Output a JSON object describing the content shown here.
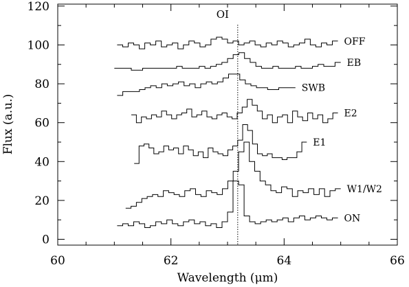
{
  "chart_data": {
    "type": "line",
    "title": "",
    "xlabel": "Wavelength (μm)",
    "ylabel": "Flux (a.u.)",
    "xlim": [
      60,
      66
    ],
    "ylim": [
      -3,
      121
    ],
    "x_ticks": [
      60,
      62,
      64,
      66
    ],
    "y_ticks": [
      0,
      20,
      40,
      60,
      80,
      100,
      120
    ],
    "step_style": "stepped histogram",
    "grid": false,
    "legend": "none; series labelled at right end of each curve",
    "annotation": {
      "text": "OI",
      "x": 63.18,
      "line_style": "dotted vertical line"
    },
    "series": [
      {
        "name": "OFF",
        "x_start": 61.05,
        "x_end": 64.95,
        "values": [
          100,
          99,
          101,
          100,
          98,
          101,
          100,
          102,
          99,
          100,
          101,
          98,
          100,
          102,
          101,
          99,
          100,
          103,
          104,
          103,
          101,
          102,
          100,
          101,
          102,
          100,
          99,
          101,
          100,
          102,
          101,
          99,
          100,
          101,
          103,
          100,
          99,
          101,
          100,
          102
        ]
      },
      {
        "name": "EB",
        "x_start": 61.0,
        "x_end": 65.0,
        "values": [
          88,
          88,
          88,
          87,
          87,
          88,
          88,
          88,
          88,
          88,
          88,
          89,
          88,
          88,
          88,
          89,
          88,
          89,
          90,
          91,
          93,
          95,
          96,
          93,
          91,
          89,
          88,
          88,
          89,
          88,
          88,
          88,
          89,
          88,
          88,
          89,
          90,
          89,
          89,
          91
        ]
      },
      {
        "name": "SWB",
        "x_start": 61.05,
        "x_end": 64.2,
        "values": [
          74,
          76,
          76,
          76,
          77,
          78,
          79,
          78,
          80,
          79,
          80,
          81,
          79,
          80,
          78,
          80,
          81,
          80,
          81,
          83,
          85,
          85,
          82,
          80,
          79,
          78,
          78,
          77,
          77,
          78,
          78,
          78
        ]
      },
      {
        "name": "E2",
        "x_start": 61.3,
        "x_end": 64.95,
        "values": [
          64,
          60,
          63,
          62,
          64,
          63,
          66,
          64,
          62,
          64,
          65,
          67,
          63,
          64,
          66,
          63,
          62,
          64,
          65,
          63,
          62,
          65,
          68,
          72,
          69,
          66,
          62,
          64,
          60,
          63,
          64,
          60,
          66,
          63,
          61,
          65,
          62,
          64,
          60,
          62,
          65
        ]
      },
      {
        "name": "E1",
        "x_start": 61.35,
        "x_end": 64.4,
        "values": [
          39,
          48,
          49,
          47,
          44,
          45,
          48,
          46,
          47,
          44,
          48,
          46,
          43,
          45,
          42,
          47,
          45,
          44,
          43,
          46,
          48,
          51,
          59,
          56,
          49,
          44,
          43,
          44,
          42,
          42,
          41,
          42,
          42,
          45,
          50
        ]
      },
      {
        "name": "W1/W2",
        "x_start": 61.2,
        "x_end": 65.0,
        "values": [
          16,
          17,
          19,
          21,
          22,
          23,
          22,
          25,
          24,
          23,
          22,
          25,
          26,
          23,
          22,
          25,
          24,
          23,
          26,
          30,
          35,
          45,
          50,
          40,
          35,
          30,
          28,
          25,
          24,
          27,
          26,
          22,
          25,
          24,
          26,
          23,
          26,
          22,
          25,
          26
        ]
      },
      {
        "name": "ON",
        "x_start": 61.05,
        "x_end": 64.95,
        "values": [
          7,
          8,
          7,
          9,
          8,
          6,
          7,
          9,
          8,
          10,
          8,
          7,
          9,
          10,
          8,
          9,
          7,
          8,
          6,
          9,
          14,
          30,
          28,
          12,
          9,
          8,
          9,
          10,
          9,
          10,
          11,
          9,
          11,
          12,
          10,
          11,
          12,
          11,
          10,
          11
        ]
      }
    ]
  }
}
